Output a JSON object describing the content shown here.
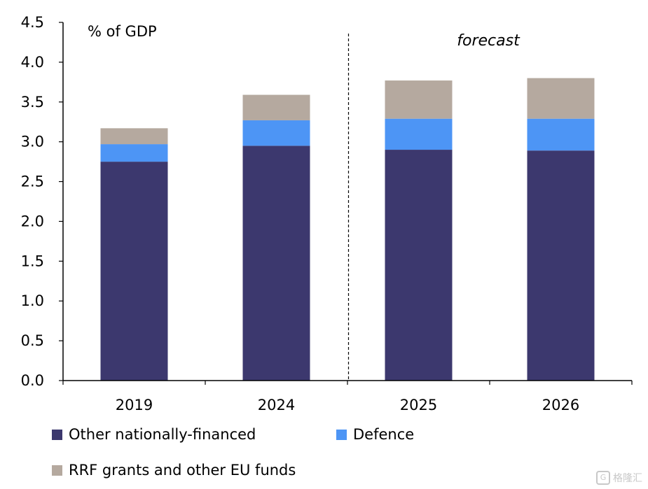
{
  "chart_data": {
    "type": "bar",
    "stacked": true,
    "categories": [
      "2019",
      "2024",
      "2025",
      "2026"
    ],
    "series": [
      {
        "name": "Other nationally-financed",
        "color": "#3c386e",
        "values": [
          2.75,
          2.95,
          2.9,
          2.89
        ]
      },
      {
        "name": "Defence",
        "color": "#4d95f5",
        "values": [
          0.22,
          0.32,
          0.39,
          0.4
        ]
      },
      {
        "name": "RRF grants and other EU funds",
        "color": "#b5a99f",
        "values": [
          0.2,
          0.32,
          0.48,
          0.51
        ]
      }
    ],
    "unit_label": "% of GDP",
    "annotation": "forecast",
    "forecast_start_category": "2025",
    "ylim": [
      0,
      4.5
    ],
    "yticks": [
      "0.0",
      "0.5",
      "1.0",
      "1.5",
      "2.0",
      "2.5",
      "3.0",
      "3.5",
      "4.0",
      "4.5"
    ],
    "grid": false,
    "legend_position": "bottom"
  },
  "watermark": {
    "icon": "G",
    "text": "格隆汇"
  }
}
